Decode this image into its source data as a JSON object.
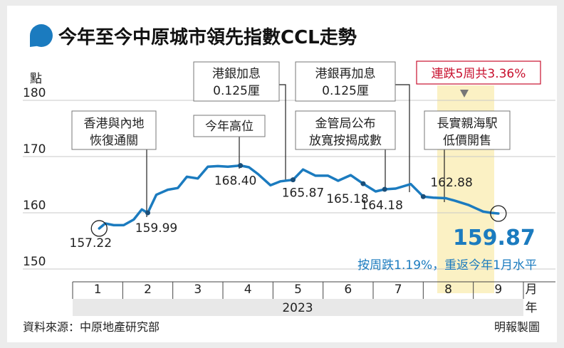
{
  "header": {
    "title": "今年至今中原城市領先指數CCL走勢",
    "unit_label": "點"
  },
  "x_axis": {
    "month_labels": [
      "1",
      "2",
      "3",
      "4",
      "5",
      "6",
      "7",
      "8",
      "9"
    ],
    "month_suffix": "月",
    "year": "2023",
    "year_suffix": "年"
  },
  "annotations": {
    "reopen": [
      "香港與內地",
      "恢復通關"
    ],
    "year_high": "今年高位",
    "hike1": [
      "港銀加息",
      "0.125厘"
    ],
    "hkma": [
      "金管局公布",
      "放寬按揭成數"
    ],
    "hike2": [
      "港銀再加息",
      "0.125厘"
    ],
    "ckh": [
      "長實親海駅",
      "低價開售"
    ],
    "drop_badge": "連跌5周共3.36%",
    "weekly_note": "按周跌1.19%，重返今年1月水平"
  },
  "footer": {
    "source": "資料來源：中原地產研究部",
    "credit": "明報製圖"
  },
  "colors": {
    "line": "#1b7bbf",
    "latest_value": "#1b7bbf",
    "badge_text": "#c8102e",
    "highlight": "#fbf1c4"
  },
  "chart_data": {
    "type": "line",
    "title": "今年至今中原城市領先指數CCL走勢",
    "ylabel": "點",
    "xlabel": "2023",
    "ylim": [
      150,
      180
    ],
    "yticks": [
      150,
      160,
      170,
      180
    ],
    "xlim": [
      0.5,
      9.5
    ],
    "x_tick_labels": [
      "1",
      "2",
      "3",
      "4",
      "5",
      "6",
      "7",
      "8",
      "9"
    ],
    "grid": true,
    "series": [
      {
        "x": [
          1.03,
          1.15,
          1.32,
          1.52,
          1.72,
          1.88,
          2.0,
          2.17,
          2.4,
          2.6,
          2.78,
          3.0,
          3.2,
          3.4,
          3.6,
          3.85,
          4.02,
          4.2,
          4.45,
          4.65,
          4.9,
          5.1,
          5.35,
          5.6,
          5.8,
          6.05,
          6.3,
          6.55,
          6.73,
          6.95,
          7.25,
          7.5,
          7.7,
          7.95,
          8.15,
          8.4,
          8.55,
          8.7,
          8.85,
          9.0
        ],
        "y": [
          157.22,
          158.1,
          157.8,
          157.8,
          158.8,
          160.6,
          159.99,
          163.2,
          164.1,
          164.4,
          166.4,
          166.1,
          168.2,
          168.3,
          168.2,
          168.4,
          168.1,
          166.9,
          164.9,
          165.6,
          165.87,
          167.7,
          166.6,
          166.6,
          165.7,
          166.7,
          165.18,
          163.8,
          164.18,
          164.3,
          165.1,
          162.88,
          162.7,
          162.6,
          162.1,
          161.4,
          160.8,
          160.2,
          160.0,
          159.87
        ]
      }
    ],
    "labeled_values": [
      {
        "x": 1.03,
        "y": 157.22,
        "label": "157.22"
      },
      {
        "x": 2.0,
        "y": 159.99,
        "label": "159.99"
      },
      {
        "x": 3.85,
        "y": 168.4,
        "label": "168.40"
      },
      {
        "x": 4.9,
        "y": 165.87,
        "label": "165.87"
      },
      {
        "x": 6.3,
        "y": 165.18,
        "label": "165.18"
      },
      {
        "x": 6.73,
        "y": 164.18,
        "label": "164.18"
      },
      {
        "x": 7.5,
        "y": 162.88,
        "label": "162.88"
      },
      {
        "x": 9.0,
        "y": 159.87,
        "label": "159.87"
      }
    ]
  }
}
